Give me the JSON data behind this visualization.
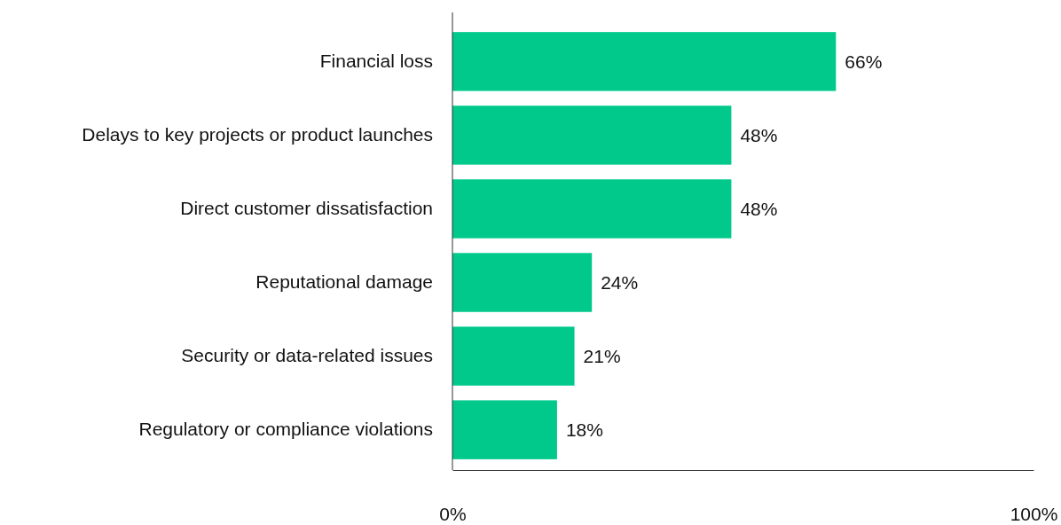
{
  "chart_data": {
    "type": "bar",
    "orientation": "horizontal",
    "categories": [
      "Financial loss",
      "Delays to key projects or product launches",
      "Direct customer dissatisfaction",
      "Reputational damage",
      "Security or data-related issues",
      "Regulatory or compliance violations"
    ],
    "values": [
      66,
      48,
      48,
      24,
      21,
      18
    ],
    "value_labels": [
      "66%",
      "48%",
      "48%",
      "24%",
      "21%",
      "18%"
    ],
    "color": "#00c98b",
    "xlim": [
      0,
      100
    ],
    "xticks": [
      {
        "value": 0,
        "label": "0%"
      },
      {
        "value": 100,
        "label": "100%"
      }
    ],
    "grid": false
  }
}
